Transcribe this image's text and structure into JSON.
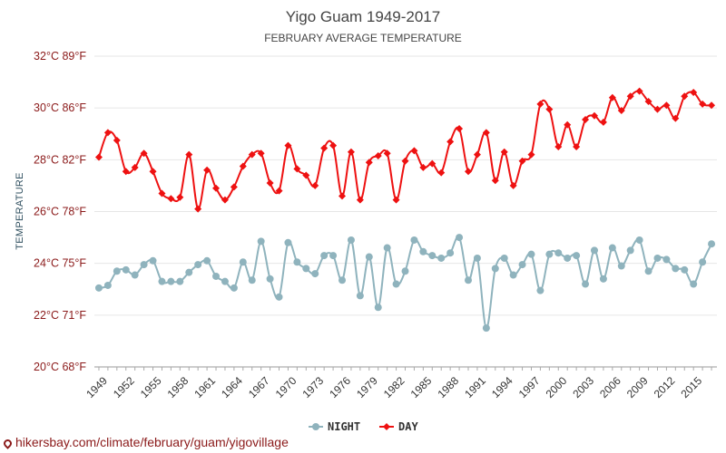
{
  "chart_data": {
    "type": "line",
    "title": "Yigo Guam 1949-2017",
    "subtitle": "FEBRUARY AVERAGE TEMPERATURE",
    "ylabel": "TEMPERATURE",
    "xlabel": "",
    "ylim": [
      20,
      32
    ],
    "grid": true,
    "legend_position": "bottom",
    "y_ticks": [
      {
        "value": 20,
        "label": "20°C 68°F"
      },
      {
        "value": 22,
        "label": "22°C 71°F"
      },
      {
        "value": 24,
        "label": "24°C 75°F"
      },
      {
        "value": 26,
        "label": "26°C 78°F"
      },
      {
        "value": 28,
        "label": "28°C 82°F"
      },
      {
        "value": 30,
        "label": "30°C 86°F"
      },
      {
        "value": 32,
        "label": "32°C 89°F"
      }
    ],
    "x_tick_labels": [
      "1949",
      "1952",
      "1955",
      "1958",
      "1961",
      "1964",
      "1967",
      "1970",
      "1973",
      "1976",
      "1979",
      "1982",
      "1985",
      "1988",
      "1991",
      "1994",
      "1997",
      "2000",
      "2003",
      "2006",
      "2009",
      "2012",
      "2015"
    ],
    "x": [
      1949,
      1950,
      1951,
      1952,
      1953,
      1954,
      1955,
      1956,
      1957,
      1958,
      1959,
      1960,
      1961,
      1962,
      1963,
      1964,
      1965,
      1966,
      1967,
      1968,
      1969,
      1970,
      1971,
      1972,
      1973,
      1974,
      1975,
      1976,
      1977,
      1978,
      1979,
      1980,
      1981,
      1982,
      1983,
      1984,
      1985,
      1986,
      1987,
      1988,
      1989,
      1990,
      1991,
      1992,
      1993,
      1994,
      1995,
      1996,
      1997,
      1998,
      1999,
      2000,
      2001,
      2002,
      2003,
      2004,
      2005,
      2006,
      2007,
      2008,
      2009,
      2010,
      2011,
      2012,
      2013,
      2014,
      2015,
      2016,
      2017
    ],
    "series": [
      {
        "name": "NIGHT",
        "color": "#8fb3bd",
        "marker": "circle",
        "values": [
          23.05,
          23.15,
          23.7,
          23.75,
          23.55,
          23.95,
          24.1,
          23.3,
          23.3,
          23.3,
          23.65,
          23.95,
          24.1,
          23.5,
          23.3,
          23.05,
          24.05,
          23.35,
          24.85,
          23.4,
          22.7,
          24.8,
          24.05,
          23.8,
          23.6,
          24.3,
          24.3,
          23.35,
          24.9,
          22.75,
          24.25,
          22.3,
          24.6,
          23.2,
          23.7,
          24.9,
          24.45,
          24.3,
          24.2,
          24.4,
          25.0,
          23.35,
          24.2,
          21.5,
          23.8,
          24.2,
          23.55,
          23.95,
          24.35,
          22.95,
          24.35,
          24.4,
          24.2,
          24.3,
          23.2,
          24.5,
          23.4,
          24.6,
          23.9,
          24.5,
          24.9,
          23.7,
          24.2,
          24.15,
          23.8,
          23.75,
          23.2,
          24.05,
          24.75
        ]
      },
      {
        "name": "DAY",
        "color": "#ee1111",
        "marker": "diamond",
        "values": [
          28.1,
          29.05,
          28.75,
          27.55,
          27.7,
          28.25,
          27.55,
          26.7,
          26.5,
          26.55,
          28.2,
          26.1,
          27.6,
          26.9,
          26.45,
          26.95,
          27.75,
          28.2,
          28.25,
          27.1,
          26.8,
          28.55,
          27.65,
          27.4,
          27.0,
          28.45,
          28.55,
          26.6,
          28.3,
          26.45,
          27.9,
          28.15,
          28.25,
          26.45,
          27.95,
          28.35,
          27.7,
          27.85,
          27.5,
          28.7,
          29.2,
          27.55,
          28.2,
          29.05,
          27.2,
          28.3,
          27.0,
          27.95,
          28.2,
          30.15,
          29.95,
          28.5,
          29.35,
          28.5,
          29.55,
          29.7,
          29.45,
          30.4,
          29.9,
          30.45,
          30.65,
          30.25,
          29.95,
          30.1,
          29.6,
          30.45,
          30.6,
          30.15,
          30.1
        ]
      }
    ]
  },
  "watermark": "hikersbay.com/climate/february/guam/yigovillage"
}
